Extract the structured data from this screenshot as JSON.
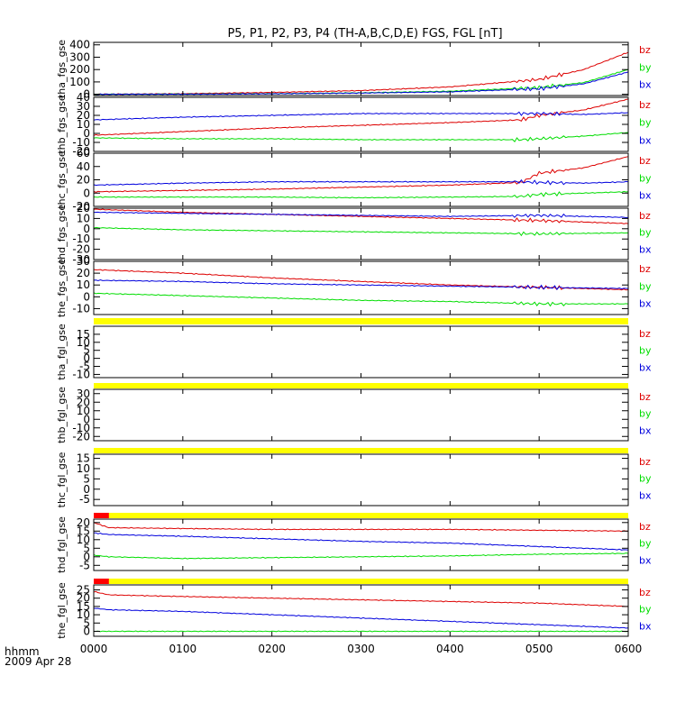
{
  "title": "P5, P1, P2, P3, P4 (TH-A,B,C,D,E) FGS, FGL [nT]",
  "x_axis": {
    "range": [
      "0000",
      "0600"
    ],
    "ticks": [
      "0000",
      "0100",
      "0200",
      "0300",
      "0400",
      "0500",
      "0600"
    ],
    "label_line1": "hhmm",
    "label_line2": "2009 Apr 28"
  },
  "colors": {
    "bz": "#dd0000",
    "by": "#00dd00",
    "bx": "#0000dd",
    "flag": "#ffff00",
    "flag_red": "#ff0000"
  },
  "chart_data": [
    {
      "type": "line",
      "ylabel": "tha_fgs_gse",
      "ylim": [
        -10,
        420
      ],
      "yticks": [
        "400",
        "300",
        "200",
        "100",
        "0"
      ],
      "legend": [
        "bz",
        "by",
        "bx"
      ],
      "x": [
        0,
        1,
        2,
        3,
        4,
        5,
        5.5,
        6
      ],
      "series": [
        {
          "name": "bz",
          "values": [
            0,
            5,
            15,
            30,
            60,
            120,
            200,
            340
          ]
        },
        {
          "name": "by",
          "values": [
            0,
            2,
            5,
            12,
            25,
            55,
            95,
            200
          ]
        },
        {
          "name": "bx",
          "values": [
            0,
            1,
            4,
            10,
            20,
            45,
            85,
            180
          ]
        }
      ]
    },
    {
      "type": "line",
      "ylabel": "thb_fgs_gse",
      "ylim": [
        -20,
        40
      ],
      "yticks": [
        "40",
        "30",
        "20",
        "10",
        "0",
        "-10",
        "-20"
      ],
      "legend": [
        "bz",
        "by",
        "bx"
      ],
      "x": [
        0,
        1,
        2,
        3,
        4,
        4.8,
        5,
        5.5,
        6
      ],
      "series": [
        {
          "name": "bz",
          "values": [
            -2,
            2,
            6,
            9,
            12,
            15,
            20,
            26,
            38
          ]
        },
        {
          "name": "by",
          "values": [
            -5,
            -6,
            -6,
            -7,
            -7,
            -7,
            -6,
            -3,
            1
          ]
        },
        {
          "name": "bx",
          "values": [
            15,
            18,
            20,
            22,
            22,
            22,
            22,
            21,
            23
          ]
        }
      ]
    },
    {
      "type": "line",
      "ylabel": "thc_fgs_gse",
      "ylim": [
        -20,
        60
      ],
      "yticks": [
        "60",
        "40",
        "20",
        "0",
        "-20"
      ],
      "legend": [
        "bz",
        "by",
        "bx"
      ],
      "x": [
        0,
        1,
        2,
        3,
        4,
        4.8,
        5,
        5.5,
        6
      ],
      "series": [
        {
          "name": "bz",
          "values": [
            2,
            4,
            6,
            9,
            12,
            16,
            30,
            38,
            55
          ]
        },
        {
          "name": "by",
          "values": [
            -6,
            -6,
            -6,
            -7,
            -6,
            -5,
            -2,
            0,
            2
          ]
        },
        {
          "name": "bx",
          "values": [
            12,
            15,
            17,
            17,
            17,
            17,
            16,
            15,
            17
          ]
        }
      ]
    },
    {
      "type": "line",
      "ylabel": "thd_fgs_gse",
      "ylim": [
        -30,
        20
      ],
      "yticks": [
        "20",
        "10",
        "0",
        "-10",
        "-20",
        "-30"
      ],
      "legend": [
        "bz",
        "by",
        "bx"
      ],
      "x": [
        0,
        1,
        2,
        3,
        4,
        5,
        6
      ],
      "series": [
        {
          "name": "bz",
          "values": [
            19,
            16,
            14,
            12,
            10,
            8,
            5
          ]
        },
        {
          "name": "by",
          "values": [
            1,
            -1,
            -2,
            -3,
            -4,
            -5,
            -4
          ]
        },
        {
          "name": "bx",
          "values": [
            16,
            15,
            14,
            13,
            12,
            13,
            11
          ]
        }
      ]
    },
    {
      "type": "line",
      "ylabel": "the_fgs_gse",
      "ylim": [
        -15,
        30
      ],
      "yticks": [
        "30",
        "20",
        "10",
        "0",
        "-10"
      ],
      "legend": [
        "bz",
        "by",
        "bx"
      ],
      "x": [
        0,
        1,
        2,
        3,
        4,
        5,
        6
      ],
      "series": [
        {
          "name": "bz",
          "values": [
            23,
            20,
            16,
            13,
            10,
            8,
            6
          ]
        },
        {
          "name": "by",
          "values": [
            3,
            1,
            -1,
            -3,
            -4,
            -6,
            -6
          ]
        },
        {
          "name": "bx",
          "values": [
            14,
            13,
            11,
            10,
            9,
            8,
            7
          ]
        }
      ]
    },
    {
      "type": "line",
      "ylabel": "tha_fgl_gse",
      "ylim": [
        -12,
        20
      ],
      "yticks": [
        "15",
        "10",
        "5",
        "0",
        "-5",
        "-10"
      ],
      "legend": [
        "bz",
        "by",
        "bx"
      ],
      "x": [],
      "series": []
    },
    {
      "type": "line",
      "ylabel": "thb_fgl_gse",
      "ylim": [
        -25,
        35
      ],
      "yticks": [
        "30",
        "20",
        "10",
        "0",
        "-10",
        "-20"
      ],
      "legend": [
        "bz",
        "by",
        "bx"
      ],
      "x": [],
      "series": []
    },
    {
      "type": "line",
      "ylabel": "thc_fgl_gse",
      "ylim": [
        -8,
        17
      ],
      "yticks": [
        "15",
        "10",
        "5",
        "0",
        "-5"
      ],
      "legend": [
        "bz",
        "by",
        "bx"
      ],
      "x": [],
      "series": []
    },
    {
      "type": "line",
      "ylabel": "thd_fgl_gse",
      "ylim": [
        -8,
        22
      ],
      "yticks": [
        "20",
        "15",
        "10",
        "5",
        "0",
        "-5"
      ],
      "legend": [
        "bz",
        "by",
        "bx"
      ],
      "x": [
        0,
        0.17,
        1,
        2,
        3,
        4,
        5,
        6
      ],
      "series": [
        {
          "name": "bz",
          "values": [
            20,
            17,
            16.5,
            16,
            16,
            16,
            15.5,
            15
          ]
        },
        {
          "name": "by",
          "values": [
            1,
            0,
            -1,
            -0.5,
            0,
            0.5,
            1.5,
            2
          ]
        },
        {
          "name": "bx",
          "values": [
            14,
            13,
            12,
            10.5,
            9,
            8,
            6,
            4
          ]
        }
      ]
    },
    {
      "type": "line",
      "ylabel": "the_fgl_gse",
      "ylim": [
        -3,
        28
      ],
      "yticks": [
        "25",
        "20",
        "15",
        "10",
        "5",
        "0"
      ],
      "legend": [
        "bz",
        "by",
        "bx"
      ],
      "x": [
        0,
        0.17,
        1,
        2,
        3,
        4,
        5,
        6
      ],
      "series": [
        {
          "name": "bz",
          "values": [
            24,
            22,
            21,
            20,
            19,
            18,
            17,
            15
          ]
        },
        {
          "name": "by",
          "values": [
            0,
            0,
            0,
            0,
            0,
            0,
            0,
            0
          ]
        },
        {
          "name": "bx",
          "values": [
            14,
            13,
            12,
            10,
            8,
            6,
            4,
            2
          ]
        }
      ]
    }
  ]
}
